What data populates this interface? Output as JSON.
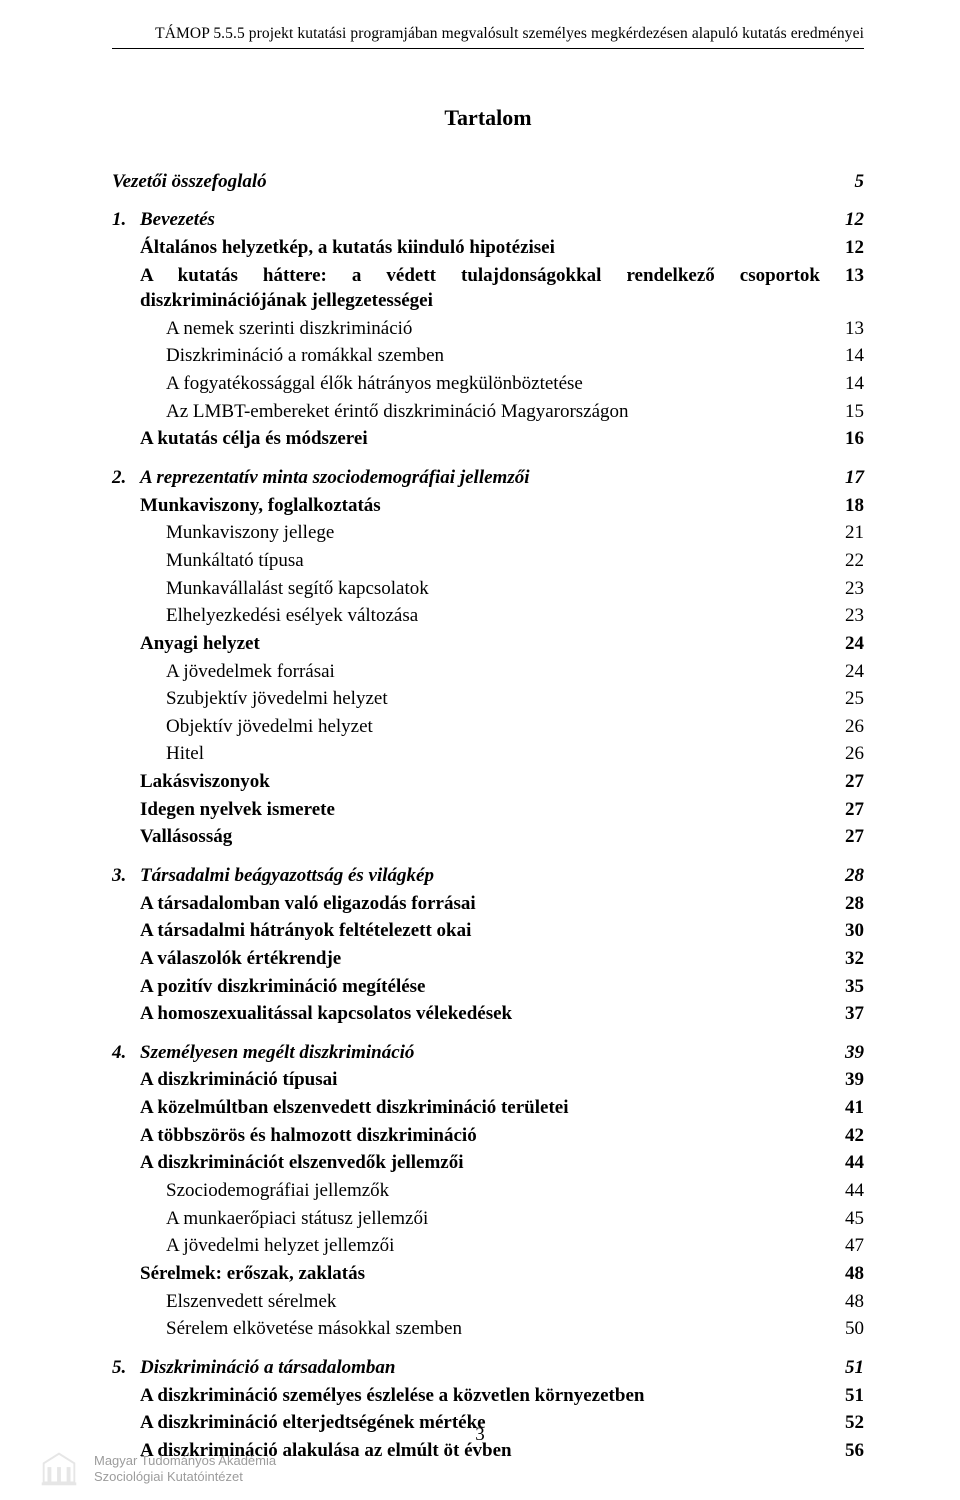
{
  "header": "TÁMOP 5.5.5 projekt kutatási programjában megvalósult személyes megkérdezésen alapuló kutatás eredményei",
  "title": "Tartalom",
  "toc": [
    {
      "label": "Vezetői összefoglaló",
      "page": "5",
      "style": "bolditalic",
      "indent": 0,
      "gap": ""
    },
    {
      "num": "1.",
      "label": "Bevezetés",
      "page": "12",
      "style": "bolditalic",
      "indent": 0,
      "gap": "section-gap"
    },
    {
      "label": "Általános helyzetkép, a kutatás kiinduló hipotézisei",
      "page": "12",
      "style": "bold",
      "indent": 1
    },
    {
      "label": "A kutatás háttere: a védett tulajdonságokkal rendelkező csoportok diszkriminációjának jellegzetességei",
      "page": "13",
      "style": "bold",
      "indent": 1,
      "justify": true
    },
    {
      "label": "A nemek szerinti diszkrimináció",
      "page": "13",
      "style": "",
      "indent": 2
    },
    {
      "label": "Diszkrimináció a romákkal szemben",
      "page": "14",
      "style": "",
      "indent": 2
    },
    {
      "label": "A fogyatékossággal élők hátrányos megkülönböztetése",
      "page": "14",
      "style": "",
      "indent": 2
    },
    {
      "label": "Az LMBT-embereket érintő diszkrimináció Magyarországon",
      "page": "15",
      "style": "",
      "indent": 2
    },
    {
      "label": "A kutatás célja és módszerei",
      "page": "16",
      "style": "bold",
      "indent": 1
    },
    {
      "num": "2.",
      "label": "A reprezentatív minta szociodemográfiai jellemzői",
      "page": "17",
      "style": "bolditalic",
      "indent": 0,
      "gap": "section-gap"
    },
    {
      "label": "Munkaviszony, foglalkoztatás",
      "page": "18",
      "style": "bold",
      "indent": 1
    },
    {
      "label": "Munkaviszony jellege",
      "page": "21",
      "style": "",
      "indent": 2
    },
    {
      "label": "Munkáltató típusa",
      "page": "22",
      "style": "",
      "indent": 2
    },
    {
      "label": "Munkavállalást segítő kapcsolatok",
      "page": "23",
      "style": "",
      "indent": 2
    },
    {
      "label": "Elhelyezkedési esélyek változása",
      "page": "23",
      "style": "",
      "indent": 2
    },
    {
      "label": "Anyagi helyzet",
      "page": "24",
      "style": "bold",
      "indent": 1
    },
    {
      "label": "A jövedelmek forrásai",
      "page": "24",
      "style": "",
      "indent": 2
    },
    {
      "label": "Szubjektív jövedelmi helyzet",
      "page": "25",
      "style": "",
      "indent": 2
    },
    {
      "label": "Objektív jövedelmi helyzet",
      "page": "26",
      "style": "",
      "indent": 2
    },
    {
      "label": "Hitel",
      "page": "26",
      "style": "",
      "indent": 2
    },
    {
      "label": "Lakásviszonyok",
      "page": "27",
      "style": "bold",
      "indent": 1
    },
    {
      "label": "Idegen nyelvek ismerete",
      "page": "27",
      "style": "bold",
      "indent": 1
    },
    {
      "label": "Vallásosság",
      "page": "27",
      "style": "bold",
      "indent": 1
    },
    {
      "num": "3.",
      "label": "Társadalmi beágyazottság és világkép",
      "page": "28",
      "style": "bolditalic",
      "indent": 0,
      "gap": "section-gap"
    },
    {
      "label": "A társadalomban való eligazodás forrásai",
      "page": "28",
      "style": "bold",
      "indent": 1
    },
    {
      "label": "A társadalmi hátrányok feltételezett okai",
      "page": "30",
      "style": "bold",
      "indent": 1
    },
    {
      "label": "A válaszolók értékrendje",
      "page": "32",
      "style": "bold",
      "indent": 1
    },
    {
      "label": "A pozitív diszkrimináció megítélése",
      "page": "35",
      "style": "bold",
      "indent": 1
    },
    {
      "label": "A homoszexualitással kapcsolatos vélekedések",
      "page": "37",
      "style": "bold",
      "indent": 1
    },
    {
      "num": "4.",
      "label": "Személyesen megélt diszkrimináció",
      "page": "39",
      "style": "bolditalic",
      "indent": 0,
      "gap": "section-gap"
    },
    {
      "label": "A diszkrimináció típusai",
      "page": "39",
      "style": "bold",
      "indent": 1
    },
    {
      "label": "A közelmúltban elszenvedett diszkrimináció területei",
      "page": "41",
      "style": "bold",
      "indent": 1
    },
    {
      "label": "A többszörös és halmozott diszkrimináció",
      "page": "42",
      "style": "bold",
      "indent": 1
    },
    {
      "label": "A diszkriminációt elszenvedők jellemzői",
      "page": "44",
      "style": "bold",
      "indent": 1
    },
    {
      "label": "Szociodemográfiai jellemzők",
      "page": "44",
      "style": "",
      "indent": 2
    },
    {
      "label": "A munkaerőpiaci státusz jellemzői",
      "page": "45",
      "style": "",
      "indent": 2
    },
    {
      "label": "A jövedelmi helyzet jellemzői",
      "page": "47",
      "style": "",
      "indent": 2
    },
    {
      "label": "Sérelmek: erőszak, zaklatás",
      "page": "48",
      "style": "bold",
      "indent": 1
    },
    {
      "label": "Elszenvedett sérelmek",
      "page": "48",
      "style": "",
      "indent": 2
    },
    {
      "label": "Sérelem elkövetése másokkal szemben",
      "page": "50",
      "style": "",
      "indent": 2
    },
    {
      "num": "5.",
      "label": "Diszkrimináció a társadalomban",
      "page": "51",
      "style": "bolditalic",
      "indent": 0,
      "gap": "section-gap"
    },
    {
      "label": "A diszkrimináció személyes észlelése a közvetlen környezetben",
      "page": "51",
      "style": "bold",
      "indent": 1
    },
    {
      "label": "A diszkrimináció elterjedtségének mértéke",
      "page": "52",
      "style": "bold",
      "indent": 1
    },
    {
      "label": "A diszkrimináció alakulása az elmúlt öt évben",
      "page": "56",
      "style": "bold",
      "indent": 1
    }
  ],
  "page_number": "3",
  "footer": {
    "line1": "Magyar Tudományos Akadémia",
    "line2": "Szociológiai Kutatóintézet"
  },
  "colors": {
    "text": "#000000",
    "footer_text": "#9c9c9c",
    "background": "#ffffff"
  }
}
